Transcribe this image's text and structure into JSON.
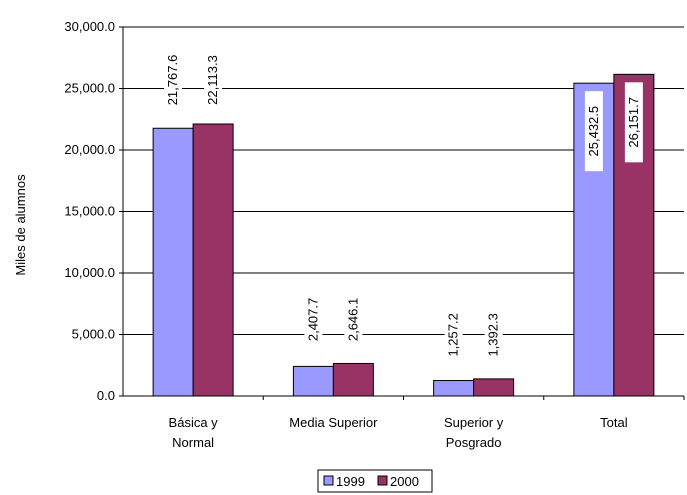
{
  "chart_data": {
    "type": "bar",
    "categories": [
      [
        "Básica y",
        "Normal"
      ],
      [
        "Media Superior"
      ],
      [
        "Superior y",
        "Posgrado"
      ],
      [
        "Total"
      ]
    ],
    "series": [
      {
        "name": "1999",
        "values": [
          21767.6,
          2407.7,
          1257.2,
          25432.5
        ],
        "labels": [
          "21,767.6",
          "2,407.7",
          "1,257.2",
          "25,432.5"
        ],
        "color": "#9999ff"
      },
      {
        "name": "2000",
        "values": [
          22113.3,
          2646.1,
          1392.3,
          26151.7
        ],
        "labels": [
          "22,113.3",
          "2,646.1",
          "1,392.3",
          "26,151.7"
        ],
        "color": "#993366"
      }
    ],
    "ylabel": "Miles de alumnos",
    "ylim": [
      0,
      30000
    ],
    "yticks": [
      0,
      5000,
      10000,
      15000,
      20000,
      25000,
      30000
    ],
    "ytick_labels": [
      "0.0",
      "5,000.0",
      "10,000.0",
      "15,000.0",
      "20,000.0",
      "25,000.0",
      "30,000.0"
    ],
    "grid": true,
    "legend_position": "bottom"
  }
}
